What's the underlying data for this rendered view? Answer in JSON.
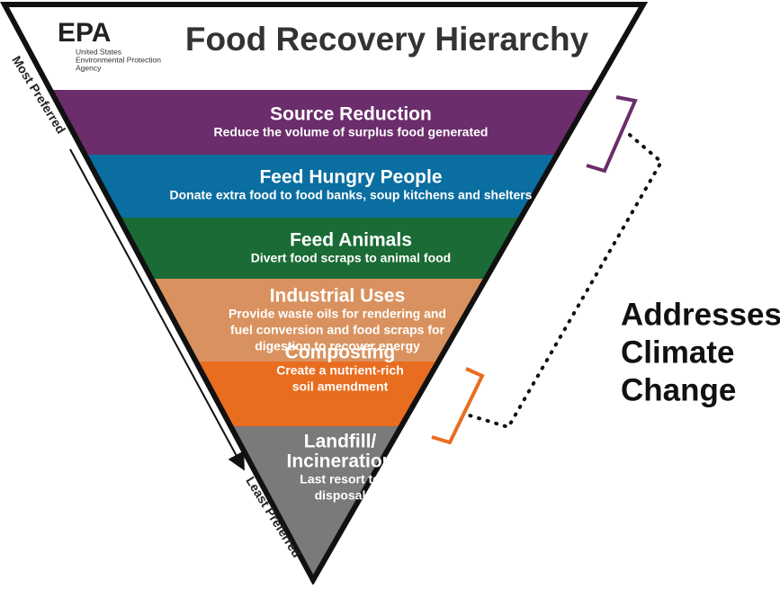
{
  "header": {
    "logo": "EPA",
    "agency": [
      "United States",
      "Environmental Protection",
      "Agency"
    ],
    "title": "Food Recovery Hierarchy"
  },
  "levels": [
    {
      "title": "Source Reduction",
      "lines": [
        "Reduce the volume of surplus food generated"
      ]
    },
    {
      "title": "Feed Hungry People",
      "lines": [
        "Donate extra food to food banks, soup kitchens and shelters"
      ]
    },
    {
      "title": "Feed Animals",
      "lines": [
        "Divert food scraps to animal food"
      ]
    },
    {
      "title": "Industrial Uses",
      "lines": [
        "Provide waste oils for rendering and",
        "fuel conversion and food scraps for",
        "digestion to recover energy"
      ]
    },
    {
      "title": "Composting",
      "lines": [
        "Create a nutrient-rich",
        "soil amendment"
      ]
    },
    {
      "title": [
        "Landfill/",
        "Incineration"
      ],
      "lines": [
        "Last resort to",
        "disposal"
      ]
    }
  ],
  "most_preferred": "Most Preferred",
  "least_preferred": "Least Preferred",
  "climate": [
    "Addresses",
    "Climate",
    "Change"
  ]
}
